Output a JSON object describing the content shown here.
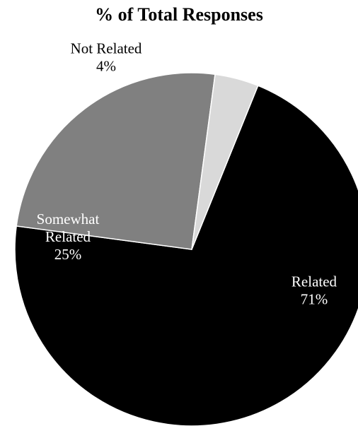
{
  "chart_data": {
    "type": "pie",
    "title": "% of Total Responses",
    "slices": [
      {
        "name": "Related",
        "value": 71,
        "label": "71%",
        "name_lines": [
          "Related"
        ],
        "color": "#000000",
        "text_color": "#ffffff"
      },
      {
        "name": "Somewhat Related",
        "value": 25,
        "label": "25%",
        "name_lines": [
          "Somewhat",
          "Related"
        ],
        "color": "#808080",
        "text_color": "#ffffff"
      },
      {
        "name": "Not Related",
        "value": 4,
        "label": "4%",
        "name_lines": [
          "Not Related"
        ],
        "color": "#d9d9d9",
        "text_color": "#000000"
      }
    ],
    "legend": "none",
    "label_position": "inside (outside for Not Related)"
  }
}
